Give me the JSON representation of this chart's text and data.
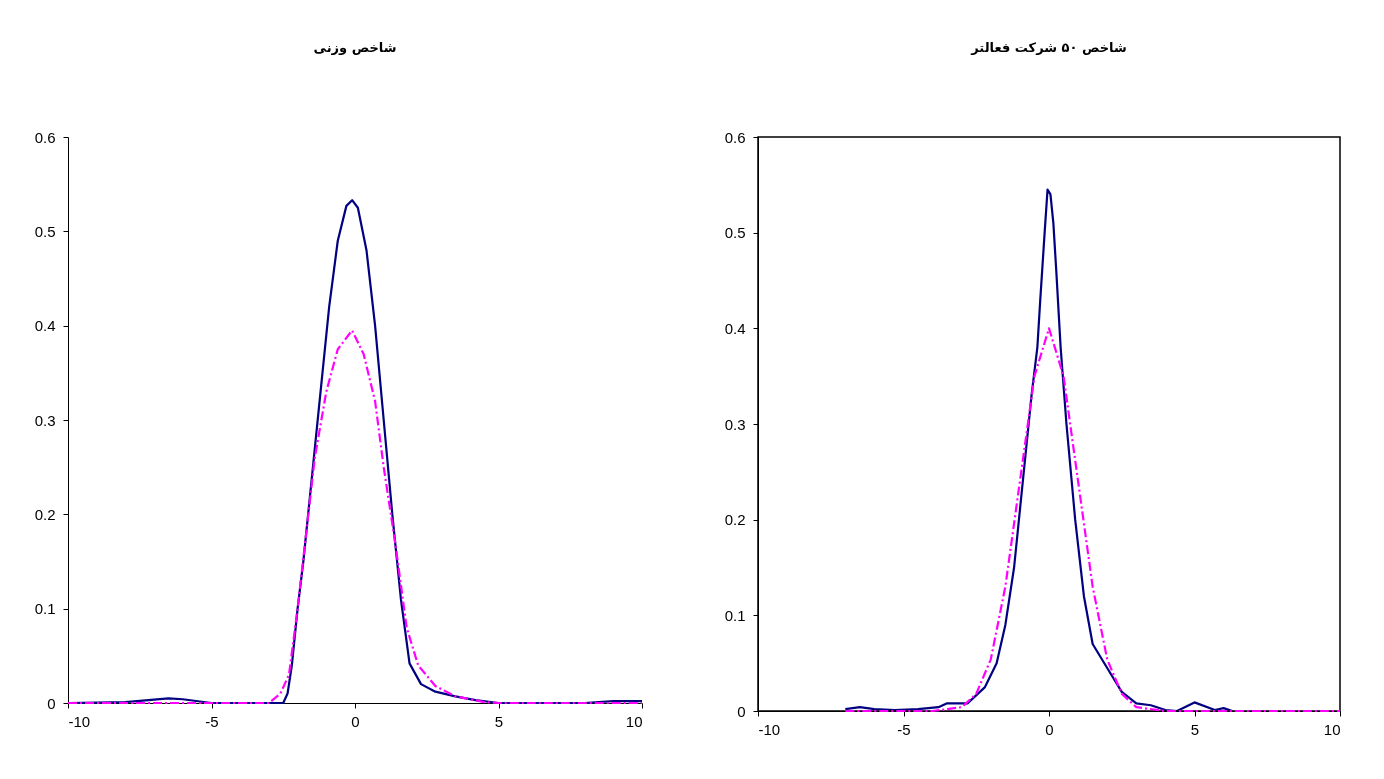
{
  "chart_data": [
    {
      "type": "line",
      "title": "شاخص وزنی",
      "xlim": [
        -10,
        10
      ],
      "xticks": [
        -10,
        -5,
        0,
        5,
        10
      ],
      "ylim": [
        0,
        0.6
      ],
      "yticks": [
        0,
        0.1,
        0.2,
        0.3,
        0.4,
        0.5,
        0.6
      ],
      "grid": false,
      "marker": "none",
      "series": [
        {
          "color": "#000080",
          "line_style": "solid",
          "x": [
            -10,
            -8,
            -6.5,
            -6,
            -5,
            -3,
            -2.5,
            -2.35,
            -2.2,
            -2.0,
            -1.8,
            -1.5,
            -1.2,
            -0.9,
            -0.6,
            -0.3,
            -0.1,
            0.1,
            0.4,
            0.7,
            1.0,
            1.3,
            1.6,
            1.9,
            2.3,
            2.8,
            3.5,
            4.2,
            5,
            8,
            9,
            10
          ],
          "values": [
            0,
            0.001,
            0.005,
            0.004,
            0,
            0,
            0,
            0.01,
            0.04,
            0.1,
            0.15,
            0.24,
            0.33,
            0.42,
            0.49,
            0.527,
            0.533,
            0.525,
            0.48,
            0.4,
            0.3,
            0.2,
            0.11,
            0.042,
            0.02,
            0.012,
            0.007,
            0.003,
            0,
            0,
            0.002,
            0.002
          ]
        },
        {
          "color": "#ff00ff",
          "line_style": "dashed",
          "x": [
            -10,
            -5,
            -3,
            -2.6,
            -2.3,
            -2.0,
            -1.7,
            -1.4,
            -1.0,
            -0.6,
            -0.1,
            0.3,
            0.7,
            1.0,
            1.4,
            1.8,
            2.2,
            2.8,
            3.5,
            4.5,
            5,
            10
          ],
          "values": [
            0,
            0,
            0,
            0.01,
            0.03,
            0.1,
            0.18,
            0.26,
            0.33,
            0.375,
            0.395,
            0.37,
            0.32,
            0.25,
            0.17,
            0.08,
            0.04,
            0.018,
            0.007,
            0.001,
            0,
            0
          ]
        }
      ]
    },
    {
      "type": "line",
      "title": "شاخص ۵۰ شرکت فعالتر",
      "xlim": [
        -10,
        10
      ],
      "xticks": [
        -10,
        -5,
        0,
        5,
        10
      ],
      "ylim": [
        0,
        0.6
      ],
      "yticks": [
        0,
        0.1,
        0.2,
        0.3,
        0.4,
        0.5,
        0.6
      ],
      "grid": false,
      "marker": "none",
      "series": [
        {
          "color": "#000080",
          "line_style": "solid",
          "x": [
            -7,
            -6.5,
            -6,
            -5.3,
            -4.5,
            -3.8,
            -3.5,
            -2.8,
            -2.2,
            -1.8,
            -1.5,
            -1.2,
            -0.9,
            -0.6,
            -0.4,
            -0.3,
            -0.15,
            -0.05,
            0.05,
            0.15,
            0.25,
            0.4,
            0.6,
            0.9,
            1.2,
            1.5,
            2.0,
            2.5,
            3.0,
            3.5,
            4.0,
            4.4,
            5.0,
            5.7,
            6.0,
            6.3
          ],
          "values": [
            0.002,
            0.004,
            0.002,
            0.001,
            0.002,
            0.004,
            0.008,
            0.008,
            0.025,
            0.05,
            0.09,
            0.15,
            0.24,
            0.33,
            0.38,
            0.43,
            0.5,
            0.545,
            0.54,
            0.51,
            0.46,
            0.38,
            0.3,
            0.2,
            0.12,
            0.07,
            0.045,
            0.02,
            0.008,
            0.006,
            0.001,
            0,
            0.009,
            0.001,
            0.003,
            0
          ]
        },
        {
          "color": "#ff00ff",
          "line_style": "dashed",
          "x": [
            -7,
            -4,
            -3,
            -2.5,
            -2,
            -1.5,
            -1,
            -0.5,
            0,
            0.5,
            1,
            1.5,
            2,
            2.5,
            3,
            4,
            10
          ],
          "values": [
            0,
            0,
            0.004,
            0.018,
            0.054,
            0.13,
            0.24,
            0.35,
            0.4,
            0.35,
            0.24,
            0.13,
            0.054,
            0.018,
            0.004,
            0,
            0
          ]
        }
      ]
    }
  ]
}
